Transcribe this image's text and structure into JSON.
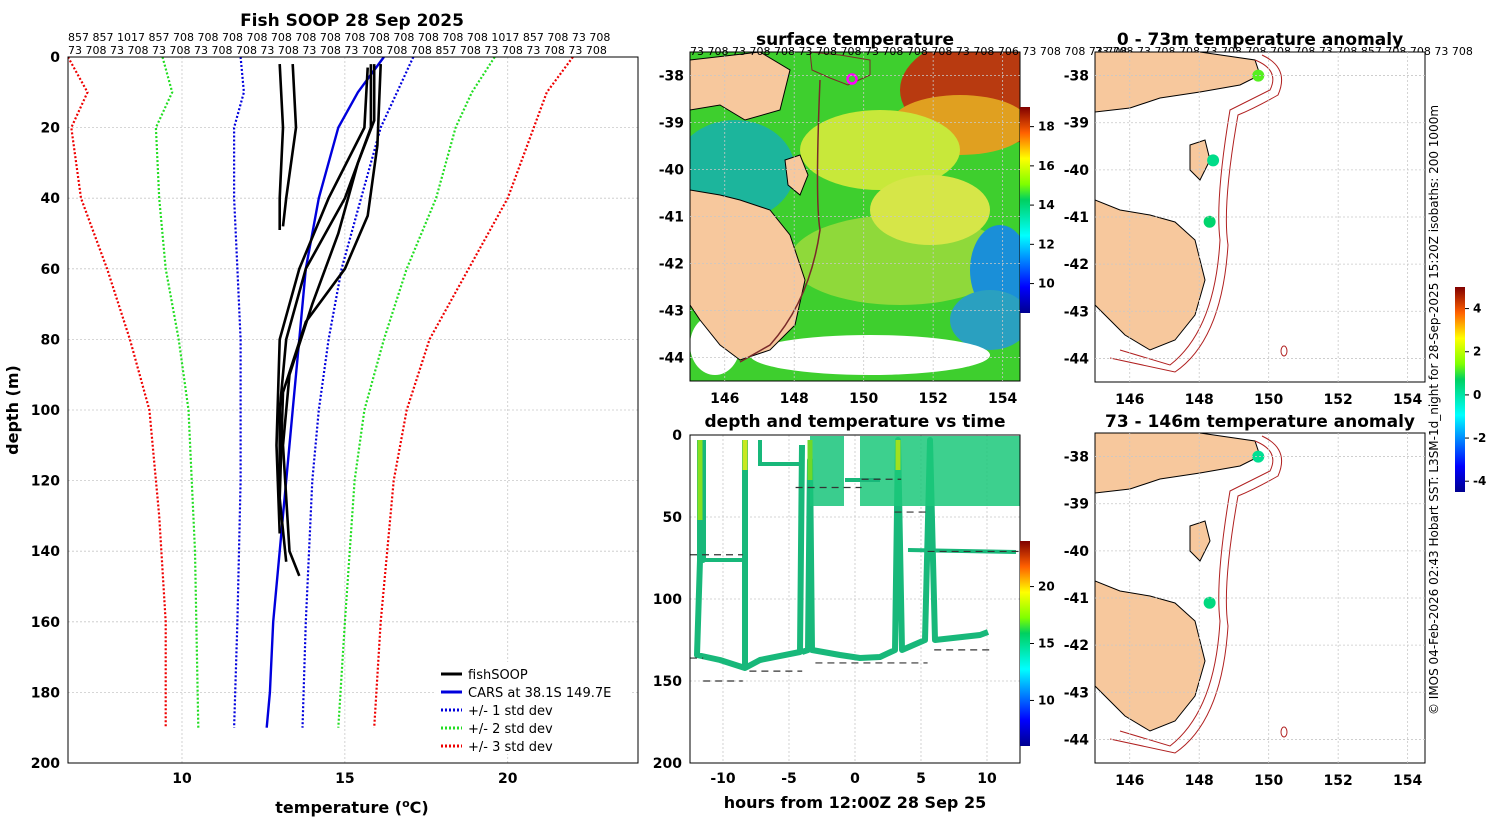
{
  "profile": {
    "title": "Fish SOOP 28 Sep 2025",
    "xlabel": "temperature (",
    "xlabel_sup": "o",
    "xlabel_tail": "C)",
    "ylabel": "depth (m)",
    "top_row1": [
      "857",
      "857",
      "1017",
      "857",
      "708",
      "708",
      "708",
      "708",
      "708",
      "708",
      "708",
      "708",
      "708",
      "708",
      "708",
      "708",
      "708",
      "1017",
      "857",
      "708",
      "73",
      "708"
    ],
    "top_row2": [
      "73",
      "708",
      "73",
      "708",
      "73",
      "708",
      "73",
      "708",
      "708",
      "73",
      "708",
      "73",
      "708",
      "73",
      "708",
      "708",
      "708",
      "857",
      "708",
      "73",
      "708",
      "73",
      "708",
      "73",
      "708"
    ],
    "legend": {
      "fish": "fishSOOP",
      "cars": "CARS at 38.1S 149.7E",
      "sd1": "+/- 1 std dev",
      "sd2": "+/- 2 std dev",
      "sd3": "+/- 3 std dev"
    }
  },
  "sst": {
    "title": "surface temperature",
    "colorbar_ticks": [
      "18",
      "16",
      "14",
      "12",
      "10"
    ]
  },
  "timeseries": {
    "title": "depth and temperature vs time",
    "xlabel": "hours from 12:00Z 28 Sep 25",
    "colorbar_ticks": [
      "20",
      "15",
      "10"
    ]
  },
  "anom1": {
    "title": "0 - 73m temperature anomaly"
  },
  "anom2": {
    "title": "73 - 146m temperature anomaly"
  },
  "anom_colorbar_ticks": [
    "4",
    "2",
    "0",
    "-2",
    "-4"
  ],
  "credit": "© IMOS 04-Feb-2026 02:43 Hobart SST: L3SM-1d_night for 28-Sep-2025 15:20Z isobaths: 200  1000m",
  "map_top_labels": "73 708 73 708 708 73 708 708 73 708 708 708 73 708 706 73 708 708 73 708",
  "map_top_labels_right": "73 708 73 708 708 73 708 708 708 708 73 708 857 708 708 73 708",
  "chart_data": [
    {
      "type": "line",
      "title": "Fish SOOP 28 Sep 2025",
      "xlabel": "temperature (oC)",
      "ylabel": "depth (m)",
      "xlim": [
        6.5,
        24
      ],
      "ylim": [
        0,
        200
      ],
      "xticks": [
        10,
        15,
        20
      ],
      "yticks": [
        0,
        20,
        40,
        60,
        80,
        100,
        120,
        140,
        160,
        180,
        200
      ],
      "series": [
        {
          "name": "CARS at 38.1S 149.7E",
          "color": "#0000dd",
          "style": "solid",
          "points": [
            [
              16.2,
              0
            ],
            [
              15.4,
              10
            ],
            [
              14.8,
              20
            ],
            [
              14.2,
              40
            ],
            [
              13.8,
              60
            ],
            [
              13.6,
              80
            ],
            [
              13.4,
              100
            ],
            [
              13.2,
              120
            ],
            [
              13.0,
              140
            ],
            [
              12.8,
              160
            ],
            [
              12.7,
              180
            ],
            [
              12.6,
              190
            ]
          ]
        },
        {
          "name": "+/- 1 std dev",
          "color": "#0000dd",
          "style": "dotted",
          "points": [
            [
              11.8,
              0
            ],
            [
              11.9,
              10
            ],
            [
              11.6,
              20
            ],
            [
              11.6,
              40
            ],
            [
              11.7,
              60
            ],
            [
              11.8,
              80
            ],
            [
              11.8,
              120
            ],
            [
              11.7,
              160
            ],
            [
              11.6,
              190
            ]
          ]
        },
        {
          "name": "+/- 1 std dev (upper)",
          "color": "#0000dd",
          "style": "dotted",
          "points": [
            [
              17.1,
              0
            ],
            [
              16.6,
              10
            ],
            [
              16.1,
              20
            ],
            [
              15.5,
              40
            ],
            [
              14.9,
              60
            ],
            [
              14.5,
              80
            ],
            [
              14.2,
              100
            ],
            [
              14.0,
              120
            ],
            [
              13.8,
              160
            ],
            [
              13.7,
              190
            ]
          ]
        },
        {
          "name": "+/- 2 std dev",
          "color": "#22dd22",
          "style": "dotted",
          "points": [
            [
              9.4,
              0
            ],
            [
              9.7,
              10
            ],
            [
              9.2,
              20
            ],
            [
              9.3,
              40
            ],
            [
              9.5,
              60
            ],
            [
              9.9,
              80
            ],
            [
              10.2,
              100
            ],
            [
              10.4,
              140
            ],
            [
              10.5,
              190
            ]
          ]
        },
        {
          "name": "+/- 2 std dev (upper)",
          "color": "#22dd22",
          "style": "dotted",
          "points": [
            [
              19.6,
              0
            ],
            [
              18.9,
              10
            ],
            [
              18.4,
              20
            ],
            [
              17.8,
              40
            ],
            [
              16.9,
              60
            ],
            [
              16.2,
              80
            ],
            [
              15.6,
              100
            ],
            [
              15.3,
              120
            ],
            [
              15.0,
              160
            ],
            [
              14.8,
              190
            ]
          ]
        },
        {
          "name": "+/- 3 std dev",
          "color": "#ee0000",
          "style": "dotted",
          "points": [
            [
              6.5,
              0
            ],
            [
              7.1,
              10
            ],
            [
              6.6,
              20
            ],
            [
              6.9,
              40
            ],
            [
              7.7,
              60
            ],
            [
              8.4,
              80
            ],
            [
              9.0,
              100
            ],
            [
              9.3,
              130
            ],
            [
              9.5,
              160
            ],
            [
              9.5,
              190
            ]
          ]
        },
        {
          "name": "+/- 3 std dev (upper)",
          "color": "#ee0000",
          "style": "dotted",
          "points": [
            [
              22.0,
              0
            ],
            [
              21.2,
              10
            ],
            [
              20.8,
              20
            ],
            [
              20.0,
              40
            ],
            [
              18.8,
              60
            ],
            [
              17.6,
              80
            ],
            [
              16.9,
              100
            ],
            [
              16.5,
              120
            ],
            [
              16.1,
              160
            ],
            [
              15.9,
              190
            ]
          ]
        },
        {
          "name": "fishSOOP",
          "color": "#000000",
          "style": "solid",
          "points": [
            [
              13.0,
              2
            ],
            [
              13.1,
              20
            ],
            [
              13.0,
              40
            ],
            [
              13.0,
              49
            ]
          ]
        },
        {
          "name": "fishSOOP",
          "color": "#000000",
          "style": "solid",
          "points": [
            [
              13.4,
              2
            ],
            [
              13.5,
              20
            ],
            [
              13.2,
              40
            ],
            [
              13.1,
              48
            ]
          ]
        },
        {
          "name": "fishSOOP",
          "color": "#000000",
          "style": "solid",
          "points": [
            [
              15.8,
              2
            ],
            [
              15.8,
              20
            ],
            [
              15.0,
              40
            ],
            [
              13.8,
              60
            ],
            [
              13.2,
              80
            ],
            [
              13.0,
              100
            ],
            [
              13.0,
              126
            ]
          ]
        },
        {
          "name": "fishSOOP",
          "color": "#000000",
          "style": "solid",
          "points": [
            [
              15.9,
              2
            ],
            [
              15.9,
              18
            ],
            [
              15.4,
              30
            ],
            [
              14.8,
              50
            ],
            [
              14.0,
              70
            ],
            [
              13.3,
              90
            ],
            [
              13.1,
              110
            ],
            [
              13.3,
              140
            ],
            [
              13.6,
              147
            ]
          ]
        },
        {
          "name": "fishSOOP",
          "color": "#000000",
          "style": "solid",
          "points": [
            [
              16.1,
              2
            ],
            [
              16.0,
              25
            ],
            [
              15.7,
              45
            ],
            [
              15.0,
              60
            ],
            [
              13.8,
              75
            ],
            [
              13.1,
              95
            ],
            [
              13.0,
              125
            ],
            [
              13.2,
              143
            ]
          ]
        },
        {
          "name": "fishSOOP",
          "color": "#000000",
          "style": "solid",
          "points": [
            [
              15.7,
              3
            ],
            [
              15.6,
              20
            ],
            [
              14.5,
              40
            ],
            [
              13.6,
              60
            ],
            [
              13.0,
              80
            ],
            [
              12.9,
              110
            ],
            [
              13.0,
              135
            ]
          ]
        }
      ]
    },
    {
      "type": "scatter",
      "title": "depth and temperature vs time",
      "xlabel": "hours from 12:00Z 28 Sep 25",
      "ylabel": "",
      "xlim": [
        -12.5,
        12.5
      ],
      "ylim": [
        0,
        200
      ],
      "xticks": [
        -10,
        -5,
        0,
        5,
        10
      ],
      "yticks": [
        0,
        50,
        100,
        150,
        200
      ],
      "colorbar": {
        "min": 6,
        "max": 24,
        "ticks": [
          10,
          15,
          20
        ]
      },
      "bottom_depth_markers": [
        {
          "x0": -12.5,
          "x1": -8.5,
          "depth": 73
        },
        {
          "x0": -12.5,
          "x1": -11.5,
          "depth": 136
        },
        {
          "x0": -11.5,
          "x1": -8.5,
          "depth": 150
        },
        {
          "x0": -8.0,
          "x1": -4.0,
          "depth": 144
        },
        {
          "x0": -4.5,
          "x1": 0.5,
          "depth": 32
        },
        {
          "x0": -3.0,
          "x1": 5.5,
          "depth": 139
        },
        {
          "x0": 0.5,
          "x1": 3.5,
          "depth": 27
        },
        {
          "x0": 3.0,
          "x1": 5.5,
          "depth": 47
        },
        {
          "x0": 5.5,
          "x1": 12.5,
          "depth": 71
        },
        {
          "x0": 6.0,
          "x1": 10.5,
          "depth": 131
        }
      ]
    },
    {
      "type": "heatmap",
      "title": "surface temperature",
      "xlabel": "",
      "ylabel": "",
      "xlim": [
        145,
        154.5
      ],
      "ylim": [
        -44.5,
        -37.5
      ],
      "xticks": [
        146,
        148,
        150,
        152,
        154
      ],
      "yticks": [
        -38,
        -39,
        -40,
        -41,
        -42,
        -43,
        -44
      ],
      "colorbar": {
        "min": 8.5,
        "max": 19,
        "ticks": [
          10,
          12,
          14,
          16,
          18
        ]
      }
    },
    {
      "type": "scatter",
      "title": "0 - 73m temperature anomaly",
      "xlim": [
        145,
        154.5
      ],
      "ylim": [
        -44.5,
        -37.5
      ],
      "xticks": [
        146,
        148,
        150,
        152,
        154
      ],
      "yticks": [
        -38,
        -39,
        -40,
        -41,
        -42,
        -43,
        -44
      ],
      "points": [
        {
          "lon": 149.7,
          "lat": -38.0,
          "anomaly": 1.2
        },
        {
          "lon": 148.4,
          "lat": -39.8,
          "anomaly": 0.3
        },
        {
          "lon": 148.3,
          "lat": -41.1,
          "anomaly": 0.6
        }
      ]
    },
    {
      "type": "scatter",
      "title": "73 - 146m temperature anomaly",
      "xlim": [
        145,
        154.5
      ],
      "ylim": [
        -44.5,
        -37.5
      ],
      "xticks": [
        146,
        148,
        150,
        152,
        154
      ],
      "yticks": [
        -38,
        -39,
        -40,
        -41,
        -42,
        -43,
        -44
      ],
      "colorbar": {
        "min": -4.5,
        "max": 5,
        "ticks": [
          4,
          2,
          0,
          -2,
          -4
        ]
      },
      "points": [
        {
          "lon": 149.7,
          "lat": -38.0,
          "anomaly": 0.2
        },
        {
          "lon": 148.3,
          "lat": -41.1,
          "anomaly": 0.4
        }
      ]
    }
  ]
}
